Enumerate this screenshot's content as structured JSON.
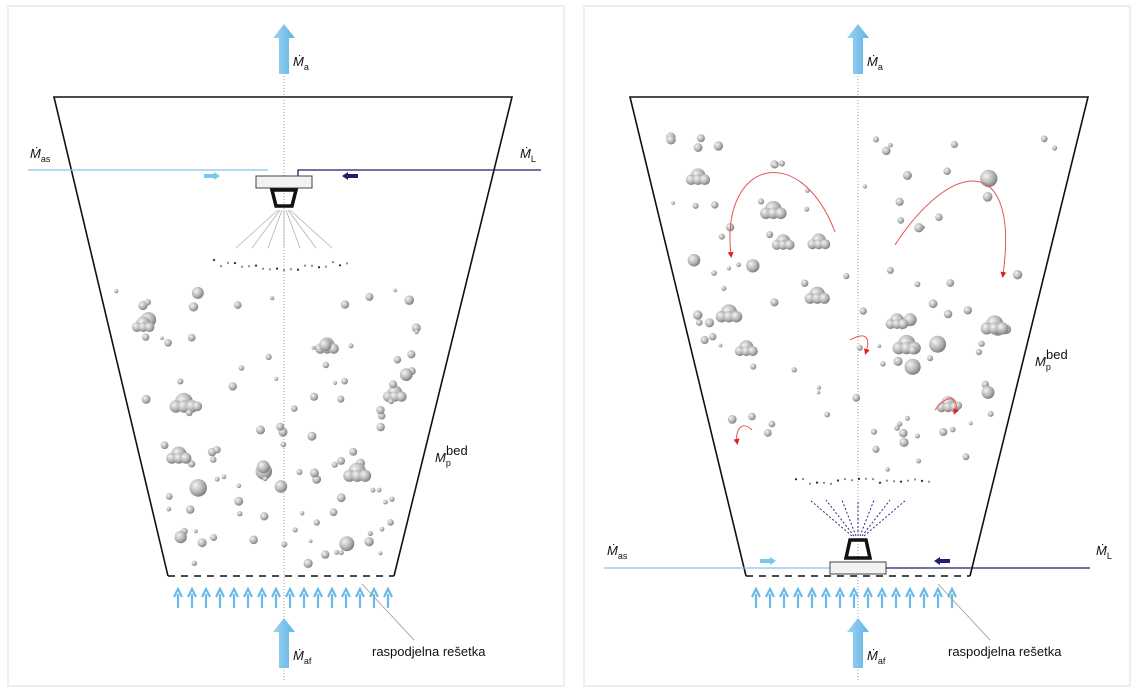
{
  "panels": [
    {
      "labels": {
        "air_out": {
          "symbol": "Ṁ",
          "sub": "a"
        },
        "atomizing_air": {
          "symbol": "Ṁ",
          "sub": "as"
        },
        "liquid": {
          "symbol": "Ṁ",
          "sub": "L"
        },
        "bed_mass": {
          "symbol": "M",
          "sub": "p",
          "sup": "bed"
        },
        "fluidizing_air": {
          "symbol": "Ṁ",
          "sub": "af"
        },
        "grid": "raspodjelna rešetka"
      }
    },
    {
      "labels": {
        "air_out": {
          "symbol": "Ṁ",
          "sub": "a"
        },
        "atomizing_air": {
          "symbol": "Ṁ",
          "sub": "as"
        },
        "liquid": {
          "symbol": "Ṁ",
          "sub": "L"
        },
        "bed_mass": {
          "symbol": "M",
          "sub": "p",
          "sup": "bed"
        },
        "fluidizing_air": {
          "symbol": "Ṁ",
          "sub": "af"
        },
        "grid": "raspodjelna rešetka"
      }
    }
  ]
}
